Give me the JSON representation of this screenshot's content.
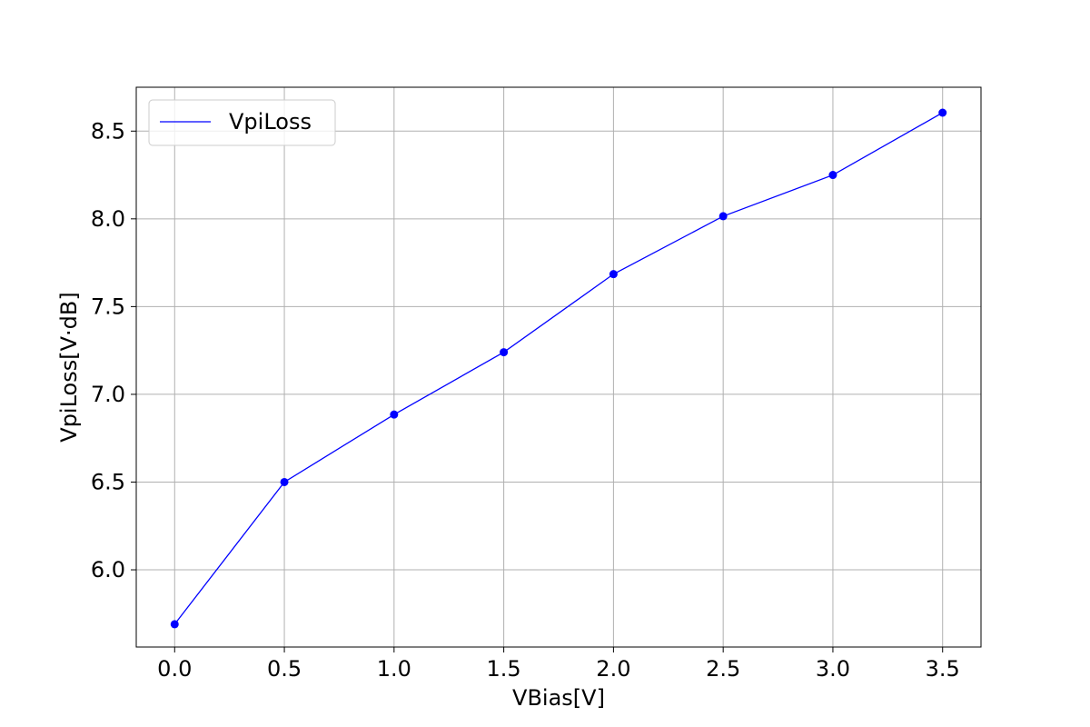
{
  "chart_data": {
    "type": "line",
    "title": "",
    "xlabel": "VBias[V]",
    "ylabel": "VpiLoss[V·dB]",
    "xlim": [
      -0.175,
      3.675
    ],
    "ylim": [
      5.56,
      8.75
    ],
    "x_ticks": [
      0.0,
      0.5,
      1.0,
      1.5,
      2.0,
      2.5,
      3.0,
      3.5
    ],
    "x_tick_labels": [
      "0.0",
      "0.5",
      "1.0",
      "1.5",
      "2.0",
      "2.5",
      "3.0",
      "3.5"
    ],
    "y_ticks": [
      6.0,
      6.5,
      7.0,
      7.5,
      8.0,
      8.5
    ],
    "y_tick_labels": [
      "6.0",
      "6.5",
      "7.0",
      "7.5",
      "8.0",
      "8.5"
    ],
    "grid": true,
    "legend": {
      "placement": "top-left"
    },
    "series": [
      {
        "name": "VpiLoss",
        "color": "#0000ff",
        "marker": "circle",
        "x": [
          0.0,
          0.5,
          1.0,
          1.5,
          2.0,
          2.5,
          3.0,
          3.5
        ],
        "y": [
          5.69,
          6.5,
          6.885,
          7.24,
          7.685,
          8.015,
          8.25,
          8.605
        ]
      }
    ]
  }
}
